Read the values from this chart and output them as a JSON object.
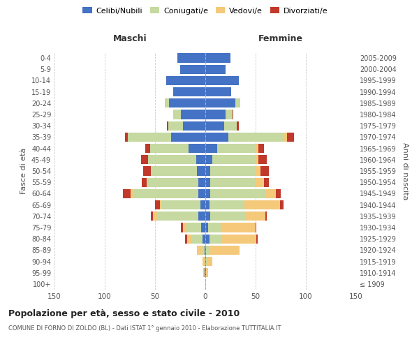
{
  "age_groups": [
    "100+",
    "95-99",
    "90-94",
    "85-89",
    "80-84",
    "75-79",
    "70-74",
    "65-69",
    "60-64",
    "55-59",
    "50-54",
    "45-49",
    "40-44",
    "35-39",
    "30-34",
    "25-29",
    "20-24",
    "15-19",
    "10-14",
    "5-9",
    "0-4"
  ],
  "birth_years": [
    "≤ 1909",
    "1910-1914",
    "1915-1919",
    "1920-1924",
    "1925-1929",
    "1930-1934",
    "1935-1939",
    "1940-1944",
    "1945-1949",
    "1950-1954",
    "1955-1959",
    "1960-1964",
    "1965-1969",
    "1970-1974",
    "1975-1979",
    "1980-1984",
    "1985-1989",
    "1990-1994",
    "1995-1999",
    "2000-2004",
    "2005-2009"
  ],
  "colors": {
    "celibi": "#4472C4",
    "coniugati": "#C5D9A0",
    "vedovi": "#F5C97A",
    "divorziati": "#C0392B"
  },
  "males": {
    "celibi": [
      0,
      1,
      0,
      1,
      3,
      4,
      7,
      5,
      7,
      7,
      8,
      9,
      17,
      34,
      22,
      24,
      36,
      32,
      39,
      25,
      28
    ],
    "coniugati": [
      0,
      0,
      0,
      2,
      10,
      15,
      40,
      38,
      65,
      50,
      45,
      48,
      38,
      43,
      15,
      8,
      4,
      0,
      0,
      0,
      0
    ],
    "vedovi": [
      0,
      1,
      3,
      5,
      5,
      3,
      5,
      2,
      2,
      1,
      1,
      0,
      0,
      0,
      0,
      0,
      0,
      0,
      0,
      0,
      0
    ],
    "divorziati": [
      0,
      0,
      0,
      0,
      2,
      2,
      2,
      5,
      8,
      5,
      8,
      7,
      5,
      3,
      1,
      0,
      0,
      0,
      0,
      0,
      0
    ]
  },
  "females": {
    "celibi": [
      0,
      1,
      1,
      1,
      4,
      3,
      5,
      4,
      5,
      5,
      5,
      7,
      12,
      23,
      19,
      20,
      30,
      26,
      33,
      20,
      25
    ],
    "coniugati": [
      0,
      0,
      1,
      3,
      12,
      12,
      35,
      35,
      55,
      45,
      45,
      42,
      38,
      55,
      12,
      7,
      5,
      0,
      0,
      0,
      0
    ],
    "vedovi": [
      1,
      2,
      5,
      30,
      35,
      35,
      20,
      35,
      10,
      8,
      5,
      4,
      3,
      3,
      0,
      0,
      0,
      0,
      0,
      0,
      0
    ],
    "divorziati": [
      0,
      0,
      0,
      0,
      1,
      1,
      1,
      4,
      5,
      5,
      8,
      8,
      5,
      7,
      2,
      1,
      0,
      0,
      0,
      0,
      0
    ]
  },
  "xlim": 150,
  "title": "Popolazione per età, sesso e stato civile - 2010",
  "subtitle": "COMUNE DI FORNO DI ZOLDO (BL) - Dati ISTAT 1° gennaio 2010 - Elaborazione TUTTITALIA.IT",
  "xlabel_left": "Maschi",
  "xlabel_right": "Femmine",
  "ylabel_left": "Fasce di età",
  "ylabel_right": "Anni di nascita",
  "legend_labels": [
    "Celibi/Nubili",
    "Coniugati/e",
    "Vedovi/e",
    "Divorziati/e"
  ],
  "background_color": "#FFFFFF",
  "grid_color": "#CCCCCC"
}
